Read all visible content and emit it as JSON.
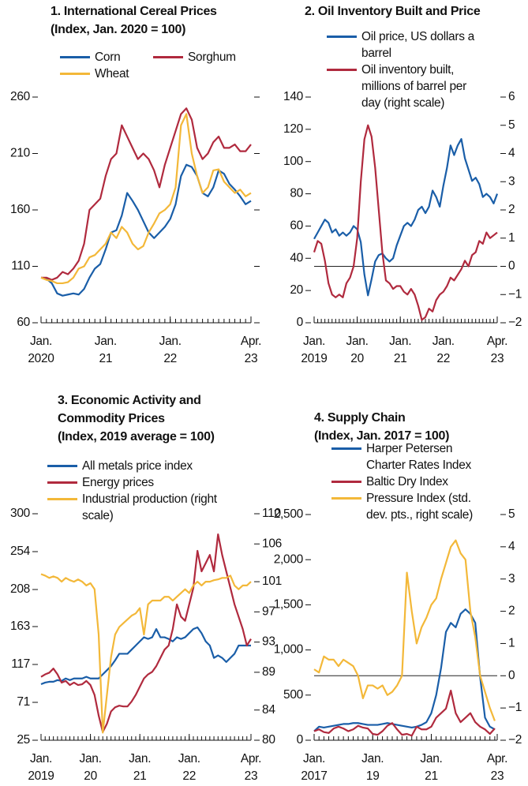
{
  "chart_data": [
    {
      "type": "line",
      "title": "1. International Cereal Prices",
      "subtitle": "(Index, Jan. 2020 = 100)",
      "x": [
        "2020-01",
        "2020-02",
        "2020-03",
        "2020-04",
        "2020-05",
        "2020-06",
        "2020-07",
        "2020-08",
        "2020-09",
        "2020-10",
        "2020-11",
        "2020-12",
        "2021-01",
        "2021-02",
        "2021-03",
        "2021-04",
        "2021-05",
        "2021-06",
        "2021-07",
        "2021-08",
        "2021-09",
        "2021-10",
        "2021-11",
        "2021-12",
        "2022-01",
        "2022-02",
        "2022-03",
        "2022-04",
        "2022-05",
        "2022-06",
        "2022-07",
        "2022-08",
        "2022-09",
        "2022-10",
        "2022-11",
        "2022-12",
        "2023-01",
        "2023-02",
        "2023-03",
        "2023-04"
      ],
      "xlim": [
        "2020-01",
        "2023-04"
      ],
      "xticks": [
        {
          "value": "2020-01",
          "label": [
            "Jan.",
            "2020"
          ]
        },
        {
          "value": "2021-01",
          "label": [
            "Jan.",
            "21"
          ]
        },
        {
          "value": "2022-01",
          "label": [
            "Jan.",
            "22"
          ]
        },
        {
          "value": "2023-04",
          "label": [
            "Apr.",
            "23"
          ]
        }
      ],
      "ylim": [
        60,
        260
      ],
      "yticks": [
        60,
        110,
        160,
        210,
        260
      ],
      "mirror_ticks": true,
      "series": [
        {
          "name": "Corn",
          "color": "#1a5ea8",
          "values": [
            100,
            99,
            95,
            86,
            84,
            85,
            86,
            85,
            90,
            100,
            108,
            112,
            125,
            140,
            142,
            155,
            175,
            168,
            160,
            150,
            140,
            135,
            140,
            145,
            152,
            165,
            190,
            200,
            198,
            190,
            175,
            172,
            180,
            195,
            192,
            183,
            178,
            172,
            165,
            168
          ]
        },
        {
          "name": "Sorghum",
          "color": "#b02a3e",
          "values": [
            100,
            100,
            98,
            100,
            105,
            103,
            108,
            115,
            130,
            160,
            165,
            170,
            190,
            205,
            210,
            235,
            225,
            215,
            205,
            210,
            205,
            195,
            180,
            200,
            215,
            230,
            245,
            250,
            240,
            215,
            205,
            210,
            220,
            225,
            215,
            215,
            218,
            212,
            212,
            218
          ]
        },
        {
          "name": "Wheat",
          "color": "#f3b839",
          "values": [
            100,
            98,
            97,
            95,
            95,
            96,
            100,
            108,
            110,
            118,
            120,
            125,
            130,
            140,
            135,
            145,
            140,
            130,
            125,
            128,
            140,
            148,
            157,
            160,
            165,
            180,
            235,
            245,
            210,
            190,
            175,
            180,
            195,
            196,
            185,
            180,
            175,
            178,
            172,
            175
          ]
        }
      ]
    },
    {
      "type": "line",
      "title": "2. Oil Inventory Built and Price",
      "x": [
        "2019-01",
        "2019-02",
        "2019-03",
        "2019-04",
        "2019-05",
        "2019-06",
        "2019-07",
        "2019-08",
        "2019-09",
        "2019-10",
        "2019-11",
        "2019-12",
        "2020-01",
        "2020-02",
        "2020-03",
        "2020-04",
        "2020-05",
        "2020-06",
        "2020-07",
        "2020-08",
        "2020-09",
        "2020-10",
        "2020-11",
        "2020-12",
        "2021-01",
        "2021-02",
        "2021-03",
        "2021-04",
        "2021-05",
        "2021-06",
        "2021-07",
        "2021-08",
        "2021-09",
        "2021-10",
        "2021-11",
        "2021-12",
        "2022-01",
        "2022-02",
        "2022-03",
        "2022-04",
        "2022-05",
        "2022-06",
        "2022-07",
        "2022-08",
        "2022-09",
        "2022-10",
        "2022-11",
        "2022-12",
        "2023-01",
        "2023-02",
        "2023-03",
        "2023-04"
      ],
      "xlim": [
        "2019-01",
        "2023-04"
      ],
      "xticks": [
        {
          "value": "2019-01",
          "label": [
            "Jan.",
            "2019"
          ]
        },
        {
          "value": "2020-01",
          "label": [
            "Jan.",
            "20"
          ]
        },
        {
          "value": "2021-01",
          "label": [
            "Jan.",
            "21"
          ]
        },
        {
          "value": "2022-01",
          "label": [
            "Jan.",
            "22"
          ]
        },
        {
          "value": "2023-04",
          "label": [
            "Apr.",
            "23"
          ]
        }
      ],
      "ylim": [
        0,
        140
      ],
      "yticks": [
        0,
        20,
        40,
        60,
        80,
        100,
        120,
        140
      ],
      "y2lim": [
        -2,
        6
      ],
      "y2ticks": [
        {
          "value": -2,
          "label": "−2"
        },
        {
          "value": -1,
          "label": "−1"
        },
        0,
        1,
        2,
        3,
        4,
        5,
        6
      ],
      "reference_line": {
        "axis": "y2",
        "value": 0
      },
      "series": [
        {
          "name": "Oil price, US dollars a barrel",
          "color": "#1a5ea8",
          "values": [
            52,
            56,
            60,
            64,
            62,
            56,
            58,
            54,
            56,
            54,
            56,
            60,
            58,
            50,
            30,
            17,
            27,
            38,
            42,
            43,
            40,
            38,
            40,
            48,
            54,
            60,
            62,
            60,
            64,
            70,
            72,
            68,
            72,
            82,
            78,
            72,
            85,
            96,
            110,
            104,
            110,
            114,
            102,
            95,
            88,
            90,
            86,
            78,
            80,
            78,
            74,
            80
          ]
        },
        {
          "name": "Oil inventory built, millions of barrel per day (right scale)",
          "color": "#b02a3e",
          "axis": "y2",
          "values": [
            0.5,
            0.9,
            0.8,
            0.2,
            -0.6,
            -1.0,
            -1.1,
            -1.0,
            -1.1,
            -0.6,
            -0.4,
            0.0,
            1.0,
            3.0,
            4.5,
            5.0,
            4.6,
            3.5,
            2.0,
            0.5,
            -0.5,
            -0.6,
            -0.8,
            -0.7,
            -0.7,
            -0.9,
            -1.0,
            -0.8,
            -1.0,
            -1.4,
            -1.9,
            -1.8,
            -1.5,
            -1.6,
            -1.2,
            -1.0,
            -0.9,
            -0.7,
            -0.4,
            -0.5,
            -0.3,
            -0.1,
            0.2,
            0.0,
            0.4,
            0.5,
            0.9,
            0.8,
            1.2,
            1.0,
            1.1,
            1.2
          ]
        }
      ]
    },
    {
      "type": "line",
      "title": "3. Economic Activity and Commodity Prices",
      "subtitle": "(Index, 2019 average = 100)",
      "x": [
        "2019-01",
        "2019-02",
        "2019-03",
        "2019-04",
        "2019-05",
        "2019-06",
        "2019-07",
        "2019-08",
        "2019-09",
        "2019-10",
        "2019-11",
        "2019-12",
        "2020-01",
        "2020-02",
        "2020-03",
        "2020-04",
        "2020-05",
        "2020-06",
        "2020-07",
        "2020-08",
        "2020-09",
        "2020-10",
        "2020-11",
        "2020-12",
        "2021-01",
        "2021-02",
        "2021-03",
        "2021-04",
        "2021-05",
        "2021-06",
        "2021-07",
        "2021-08",
        "2021-09",
        "2021-10",
        "2021-11",
        "2021-12",
        "2022-01",
        "2022-02",
        "2022-03",
        "2022-04",
        "2022-05",
        "2022-06",
        "2022-07",
        "2022-08",
        "2022-09",
        "2022-10",
        "2022-11",
        "2022-12",
        "2023-01",
        "2023-02",
        "2023-03",
        "2023-04"
      ],
      "xlim": [
        "2019-01",
        "2023-04"
      ],
      "xticks": [
        {
          "value": "2019-01",
          "label": [
            "Jan.",
            "2019"
          ]
        },
        {
          "value": "2020-01",
          "label": [
            "Jan.",
            "20"
          ]
        },
        {
          "value": "2021-01",
          "label": [
            "Jan.",
            "21"
          ]
        },
        {
          "value": "2022-01",
          "label": [
            "Jan.",
            "22"
          ]
        },
        {
          "value": "2023-04",
          "label": [
            "Apr.",
            "23"
          ]
        }
      ],
      "ylim": [
        25,
        300
      ],
      "yticks": [
        25,
        71,
        117,
        163,
        208,
        254,
        300
      ],
      "y2lim": [
        80,
        110
      ],
      "y2ticks": [
        80,
        84,
        89,
        93,
        97,
        101,
        106,
        110
      ],
      "series": [
        {
          "name": "All metals price index",
          "color": "#1a5ea8",
          "values": [
            93,
            95,
            96,
            96,
            98,
            97,
            100,
            98,
            100,
            100,
            100,
            102,
            100,
            100,
            100,
            105,
            110,
            115,
            122,
            130,
            130,
            130,
            135,
            140,
            145,
            150,
            148,
            150,
            160,
            150,
            150,
            148,
            145,
            150,
            148,
            150,
            155,
            160,
            162,
            155,
            145,
            140,
            125,
            128,
            125,
            120,
            125,
            130,
            140,
            140,
            140,
            140
          ]
        },
        {
          "name": "Energy prices",
          "color": "#b02a3e",
          "values": [
            102,
            105,
            107,
            112,
            105,
            95,
            97,
            92,
            95,
            92,
            93,
            97,
            92,
            80,
            55,
            35,
            45,
            60,
            65,
            67,
            66,
            66,
            72,
            80,
            90,
            100,
            105,
            108,
            115,
            125,
            135,
            140,
            160,
            190,
            175,
            170,
            190,
            210,
            255,
            230,
            240,
            250,
            230,
            275,
            250,
            230,
            210,
            190,
            175,
            160,
            140,
            148
          ]
        },
        {
          "name": "Industrial production (right scale)",
          "color": "#f3b839",
          "axis": "y2",
          "values": [
            102,
            101.8,
            101.5,
            101.7,
            101.5,
            101,
            101.5,
            101.2,
            101,
            101.3,
            101,
            100.5,
            100.8,
            100,
            94,
            81,
            86,
            91,
            94,
            95,
            95.5,
            96,
            96.5,
            96.8,
            97.5,
            94,
            98,
            98.5,
            98.5,
            98.5,
            99,
            99,
            98.5,
            99,
            99.5,
            100,
            99.5,
            100.5,
            101,
            100.5,
            101,
            101,
            101.2,
            101.3,
            101.5,
            101.5,
            101.8,
            100.5,
            100,
            100.5,
            100.5,
            101
          ]
        }
      ]
    },
    {
      "type": "line",
      "title": "4. Supply Chain",
      "subtitle": "(Index, Jan. 2017 = 100)",
      "x": [
        "2017-01",
        "2017-03",
        "2017-05",
        "2017-07",
        "2017-09",
        "2017-11",
        "2018-01",
        "2018-03",
        "2018-05",
        "2018-07",
        "2018-09",
        "2018-11",
        "2019-01",
        "2019-03",
        "2019-05",
        "2019-07",
        "2019-09",
        "2019-11",
        "2020-01",
        "2020-03",
        "2020-05",
        "2020-07",
        "2020-09",
        "2020-11",
        "2021-01",
        "2021-03",
        "2021-05",
        "2021-07",
        "2021-09",
        "2021-11",
        "2022-01",
        "2022-03",
        "2022-05",
        "2022-07",
        "2022-09",
        "2022-11",
        "2023-01",
        "2023-03"
      ],
      "xlim": [
        "2017-01",
        "2023-04"
      ],
      "xticks": [
        {
          "value": "2017-01",
          "label": [
            "Jan.",
            "2017"
          ]
        },
        {
          "value": "2019-01",
          "label": [
            "Jan.",
            "19"
          ]
        },
        {
          "value": "2021-01",
          "label": [
            "Jan.",
            "21"
          ]
        },
        {
          "value": "2023-04",
          "label": [
            "Apr.",
            "23"
          ]
        }
      ],
      "ylim": [
        0,
        2500
      ],
      "yticks": [
        0,
        500,
        {
          "value": 1000,
          "label": "1,000"
        },
        {
          "value": 1500,
          "label": "1,500"
        },
        {
          "value": 2000,
          "label": "2,000"
        },
        {
          "value": 2500,
          "label": "2,500"
        }
      ],
      "y2lim": [
        -2,
        5
      ],
      "y2ticks": [
        {
          "value": -2,
          "label": "−2"
        },
        {
          "value": -1,
          "label": "−1"
        },
        0,
        1,
        2,
        3,
        4,
        5
      ],
      "reference_line": {
        "axis": "y2",
        "value": 0
      },
      "series": [
        {
          "name": "Harper Petersen Charter Rates Index",
          "color": "#1a5ea8",
          "values": [
            100,
            150,
            140,
            150,
            160,
            170,
            180,
            180,
            190,
            190,
            180,
            170,
            170,
            170,
            180,
            190,
            180,
            170,
            160,
            150,
            140,
            150,
            170,
            200,
            300,
            500,
            800,
            1200,
            1300,
            1250,
            1400,
            1450,
            1400,
            1300,
            700,
            250,
            150,
            120
          ]
        },
        {
          "name": "Baltic Dry Index",
          "color": "#b02a3e",
          "values": [
            100,
            120,
            90,
            80,
            130,
            150,
            130,
            100,
            120,
            160,
            140,
            130,
            70,
            60,
            100,
            160,
            190,
            120,
            60,
            70,
            50,
            150,
            120,
            120,
            150,
            250,
            300,
            350,
            550,
            300,
            200,
            250,
            300,
            200,
            150,
            120,
            70,
            130
          ]
        },
        {
          "name": "Pressure Index (std. dev. pts., right scale)",
          "color": "#f3b839",
          "axis": "y2",
          "values": [
            0.2,
            0.1,
            0.6,
            0.5,
            0.5,
            0.3,
            0.5,
            0.4,
            0.3,
            0.0,
            -0.7,
            -0.3,
            -0.3,
            -0.4,
            -0.3,
            -0.6,
            -0.5,
            -0.3,
            0.0,
            3.2,
            2.0,
            1.0,
            1.5,
            1.8,
            2.2,
            2.4,
            3.0,
            3.5,
            4.0,
            4.2,
            3.8,
            3.6,
            2.0,
            1.2,
            0.0,
            -0.5,
            -1.0,
            -1.4
          ]
        }
      ]
    }
  ]
}
